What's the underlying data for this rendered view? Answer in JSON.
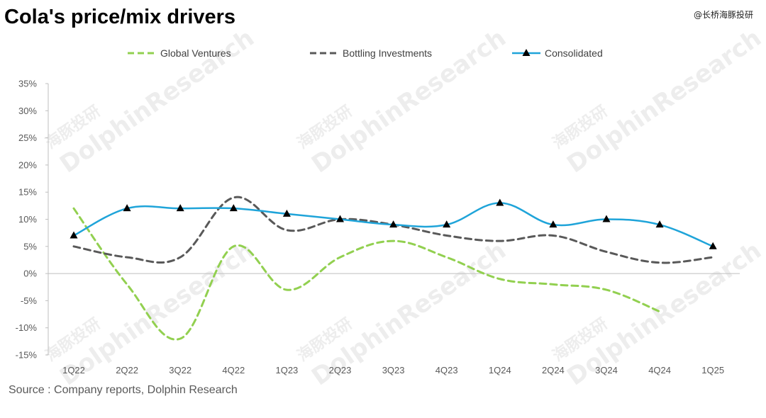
{
  "header": {
    "title": "Cola's price/mix drivers",
    "brand": "@长桥海豚投研"
  },
  "source": "Source : Company reports, Dolphin Research",
  "watermark": {
    "en": "DolphinResearch",
    "cn": "海豚投研"
  },
  "colors": {
    "global_ventures": "#92d050",
    "bottling_investments": "#595959",
    "consolidated": "#1fa4d9",
    "axis": "#bfbfbf"
  },
  "chart_data": {
    "type": "line",
    "title": "Cola's price/mix drivers",
    "xlabel": "",
    "ylabel": "",
    "categories": [
      "1Q22",
      "2Q22",
      "3Q22",
      "4Q22",
      "1Q23",
      "2Q23",
      "3Q23",
      "4Q23",
      "1Q24",
      "2Q24",
      "3Q24",
      "4Q24",
      "1Q25"
    ],
    "ylim": [
      -15,
      35
    ],
    "yticks": [
      -15,
      -10,
      -5,
      0,
      5,
      10,
      15,
      20,
      25,
      30,
      35
    ],
    "ytick_labels": [
      "-15%",
      "-10%",
      "-5%",
      "0%",
      "5%",
      "10%",
      "15%",
      "20%",
      "25%",
      "30%",
      "35%"
    ],
    "legend_position": "top",
    "grid": false,
    "series": [
      {
        "name": "Global Ventures",
        "style": "dashed",
        "values": [
          12,
          -2,
          -12,
          5,
          -3,
          3,
          6,
          3,
          -1,
          -2,
          -3,
          -7,
          null
        ]
      },
      {
        "name": "Bottling Investments",
        "style": "dashed",
        "values": [
          5,
          3,
          3,
          14,
          8,
          10,
          9,
          7,
          6,
          7,
          4,
          2,
          3
        ]
      },
      {
        "name": "Consolidated",
        "style": "solid-triangle-markers",
        "values": [
          7,
          12,
          12,
          12,
          11,
          10,
          9,
          9,
          13,
          9,
          10,
          9,
          5
        ]
      }
    ]
  }
}
